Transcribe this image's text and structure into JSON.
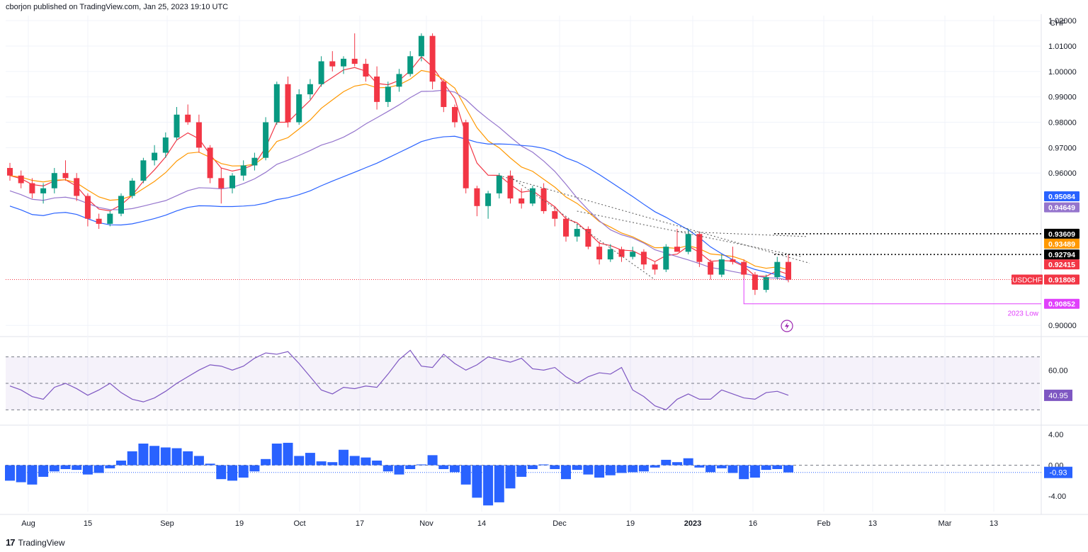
{
  "header": {
    "published": "cborjon published on TradingView.com, Jan 25, 2023 19:10 UTC"
  },
  "footer": {
    "brand": "TradingView",
    "mark": "17"
  },
  "colors": {
    "up": "#26a69a",
    "up_dark": "#089981",
    "down": "#f23645",
    "ema_red": "#f23645",
    "ema_orange": "#ff9800",
    "sma_purple": "#9575cd",
    "sma_blue": "#2962ff",
    "low_line": "#e040fb",
    "rsi_line": "#7e57c2",
    "macd_hist": "#2962ff",
    "grid": "#f0f3fa",
    "axis_text": "#131722"
  },
  "chart_data": [
    {
      "type": "candlestick",
      "symbol": "USDCHF",
      "currency_label": "CHF",
      "y_ticks": [
        "1.02000",
        "1.01000",
        "1.00000",
        "0.99000",
        "0.98000",
        "0.97000",
        "0.96000",
        "0.90000"
      ],
      "ylim": [
        0.897,
        1.022
      ],
      "x_ticks": [
        "Aug",
        "15",
        "Sep",
        "19",
        "Oct",
        "17",
        "Nov",
        "14",
        "Dec",
        "19",
        "2023",
        "16",
        "Feb",
        "13",
        "Mar",
        "13"
      ],
      "ohlc_sample": [
        [
          0.962,
          0.964,
          0.957,
          0.959
        ],
        [
          0.959,
          0.961,
          0.954,
          0.956
        ],
        [
          0.956,
          0.958,
          0.95,
          0.952
        ],
        [
          0.952,
          0.956,
          0.948,
          0.954
        ],
        [
          0.954,
          0.962,
          0.952,
          0.96
        ],
        [
          0.96,
          0.965,
          0.957,
          0.958
        ],
        [
          0.958,
          0.96,
          0.949,
          0.951
        ],
        [
          0.951,
          0.952,
          0.939,
          0.942
        ],
        [
          0.942,
          0.944,
          0.938,
          0.94
        ],
        [
          0.94,
          0.945,
          0.939,
          0.944
        ],
        [
          0.944,
          0.952,
          0.943,
          0.951
        ],
        [
          0.951,
          0.958,
          0.95,
          0.957
        ],
        [
          0.957,
          0.966,
          0.956,
          0.965
        ],
        [
          0.965,
          0.971,
          0.963,
          0.968
        ],
        [
          0.968,
          0.976,
          0.966,
          0.974
        ],
        [
          0.974,
          0.986,
          0.973,
          0.983
        ],
        [
          0.983,
          0.987,
          0.979,
          0.98
        ],
        [
          0.98,
          0.983,
          0.968,
          0.97
        ],
        [
          0.97,
          0.971,
          0.956,
          0.958
        ],
        [
          0.958,
          0.962,
          0.948,
          0.954
        ],
        [
          0.954,
          0.96,
          0.952,
          0.959
        ],
        [
          0.959,
          0.965,
          0.957,
          0.963
        ],
        [
          0.963,
          0.968,
          0.961,
          0.966
        ],
        [
          0.966,
          0.982,
          0.965,
          0.98
        ],
        [
          0.98,
          0.996,
          0.979,
          0.995
        ],
        [
          0.995,
          0.998,
          0.978,
          0.98
        ],
        [
          0.98,
          0.993,
          0.979,
          0.991
        ],
        [
          0.991,
          0.997,
          0.989,
          0.995
        ],
        [
          0.995,
          1.006,
          0.994,
          1.004
        ],
        [
          1.004,
          1.008,
          1.0,
          1.002
        ],
        [
          1.002,
          1.006,
          0.999,
          1.005
        ],
        [
          1.005,
          1.015,
          1.002,
          1.003
        ],
        [
          1.003,
          1.005,
          0.996,
          0.998
        ],
        [
          0.998,
          1.002,
          0.985,
          0.988
        ],
        [
          0.988,
          0.996,
          0.986,
          0.994
        ],
        [
          0.994,
          1.001,
          0.992,
          0.999
        ],
        [
          0.999,
          1.008,
          0.998,
          1.006
        ],
        [
          1.006,
          1.015,
          1.004,
          1.014
        ],
        [
          1.014,
          1.015,
          0.993,
          0.996
        ],
        [
          0.996,
          0.997,
          0.984,
          0.986
        ],
        [
          0.986,
          0.987,
          0.978,
          0.98
        ],
        [
          0.98,
          0.981,
          0.952,
          0.954
        ],
        [
          0.954,
          0.955,
          0.943,
          0.947
        ],
        [
          0.947,
          0.953,
          0.942,
          0.952
        ],
        [
          0.952,
          0.96,
          0.95,
          0.959
        ],
        [
          0.959,
          0.961,
          0.948,
          0.95
        ],
        [
          0.95,
          0.954,
          0.946,
          0.948
        ],
        [
          0.948,
          0.955,
          0.947,
          0.954
        ],
        [
          0.954,
          0.956,
          0.944,
          0.945
        ],
        [
          0.945,
          0.947,
          0.939,
          0.942
        ],
        [
          0.942,
          0.943,
          0.933,
          0.935
        ],
        [
          0.935,
          0.94,
          0.933,
          0.938
        ],
        [
          0.938,
          0.939,
          0.93,
          0.931
        ],
        [
          0.931,
          0.933,
          0.924,
          0.926
        ],
        [
          0.926,
          0.932,
          0.925,
          0.93
        ],
        [
          0.93,
          0.931,
          0.925,
          0.927
        ],
        [
          0.927,
          0.931,
          0.926,
          0.929
        ],
        [
          0.929,
          0.93,
          0.922,
          0.924
        ],
        [
          0.924,
          0.925,
          0.92,
          0.922
        ],
        [
          0.922,
          0.932,
          0.921,
          0.931
        ],
        [
          0.931,
          0.938,
          0.93,
          0.929
        ],
        [
          0.929,
          0.938,
          0.928,
          0.936
        ],
        [
          0.936,
          0.937,
          0.923,
          0.925
        ],
        [
          0.925,
          0.926,
          0.918,
          0.92
        ],
        [
          0.92,
          0.928,
          0.919,
          0.926
        ],
        [
          0.926,
          0.931,
          0.924,
          0.925
        ],
        [
          0.925,
          0.926,
          0.918,
          0.92
        ],
        [
          0.92,
          0.921,
          0.912,
          0.914
        ],
        [
          0.914,
          0.92,
          0.913,
          0.919
        ],
        [
          0.919,
          0.927,
          0.918,
          0.925
        ],
        [
          0.925,
          0.928,
          0.917,
          0.918
        ]
      ],
      "overlays": [
        {
          "name": "ema_red",
          "color": "#f23645"
        },
        {
          "name": "ema_orange",
          "color": "#ff9800"
        },
        {
          "name": "sma_purple",
          "color": "#9575cd"
        },
        {
          "name": "sma_blue",
          "color": "#2962ff"
        }
      ],
      "price_labels": [
        {
          "value": "0.95084",
          "bg": "#2962ff",
          "fg": "#ffffff",
          "price": 0.95084
        },
        {
          "value": "0.94649",
          "bg": "#9575cd",
          "fg": "#ffffff",
          "price": 0.94649
        },
        {
          "value": "0.93609",
          "bg": "#000000",
          "fg": "#ffffff",
          "price": 0.93609
        },
        {
          "value": "0.93489",
          "bg": "#ff9800",
          "fg": "#ffffff",
          "price": 0.93489
        },
        {
          "value": "0.92794",
          "bg": "#000000",
          "fg": "#ffffff",
          "price": 0.92794
        },
        {
          "value": "0.92415",
          "bg": "#f23645",
          "fg": "#ffffff",
          "price": 0.92415
        },
        {
          "value": "0.91808",
          "bg": "#f23645",
          "fg": "#ffffff",
          "price": 0.91808,
          "tag": "USDCHF"
        },
        {
          "value": "0.90852",
          "bg": "#e040fb",
          "fg": "#ffffff",
          "price": 0.90852
        }
      ],
      "annotation": "2023 Low"
    },
    {
      "type": "line",
      "name": "RSI",
      "y_ticks": [
        "60.00"
      ],
      "last_value": "40.95",
      "ylim": [
        20,
        80
      ],
      "band": [
        30,
        70
      ],
      "values": [
        48,
        45,
        40,
        38,
        47,
        50,
        46,
        41,
        45,
        50,
        43,
        38,
        36,
        39,
        44,
        50,
        55,
        60,
        64,
        63,
        60,
        63,
        69,
        73,
        72,
        74,
        65,
        55,
        45,
        42,
        47,
        46,
        48,
        47,
        57,
        68,
        75,
        63,
        62,
        72,
        65,
        60,
        64,
        70,
        68,
        66,
        69,
        61,
        60,
        62,
        55,
        50,
        55,
        58,
        57,
        62,
        45,
        40,
        33,
        30,
        38,
        42,
        38,
        38,
        45,
        42,
        39,
        38,
        43,
        44,
        41
      ]
    },
    {
      "type": "bar",
      "name": "MACD",
      "y_ticks": [
        "4.00",
        "0.00",
        "-4.00"
      ],
      "last_value": "-0.93",
      "ylim": [
        -6,
        5
      ],
      "values": [
        -2,
        -2.2,
        -2.5,
        -1.5,
        -0.8,
        -0.5,
        -0.6,
        -1.2,
        -1.0,
        -0.4,
        0.6,
        1.8,
        2.8,
        2.5,
        2.3,
        2.2,
        1.8,
        1.2,
        0.2,
        -1.8,
        -2.0,
        -1.6,
        -0.8,
        0.8,
        2.8,
        2.9,
        1.2,
        1.6,
        0.5,
        0.4,
        2.0,
        1.2,
        1.0,
        0.6,
        -0.8,
        -1.2,
        -0.5,
        0.1,
        1.3,
        -0.5,
        -0.9,
        -2.5,
        -4.2,
        -5.2,
        -4.8,
        -3.0,
        -1.5,
        -0.5,
        0.1,
        -0.5,
        -1.8,
        -0.6,
        -1.2,
        -1.6,
        -1.3,
        -1.0,
        -0.9,
        -0.8,
        -0.3,
        0.7,
        0.4,
        0.9,
        -0.3,
        -0.9,
        -0.4,
        -1.0,
        -1.8,
        -1.6,
        -0.6,
        -0.5,
        -0.93
      ]
    }
  ]
}
